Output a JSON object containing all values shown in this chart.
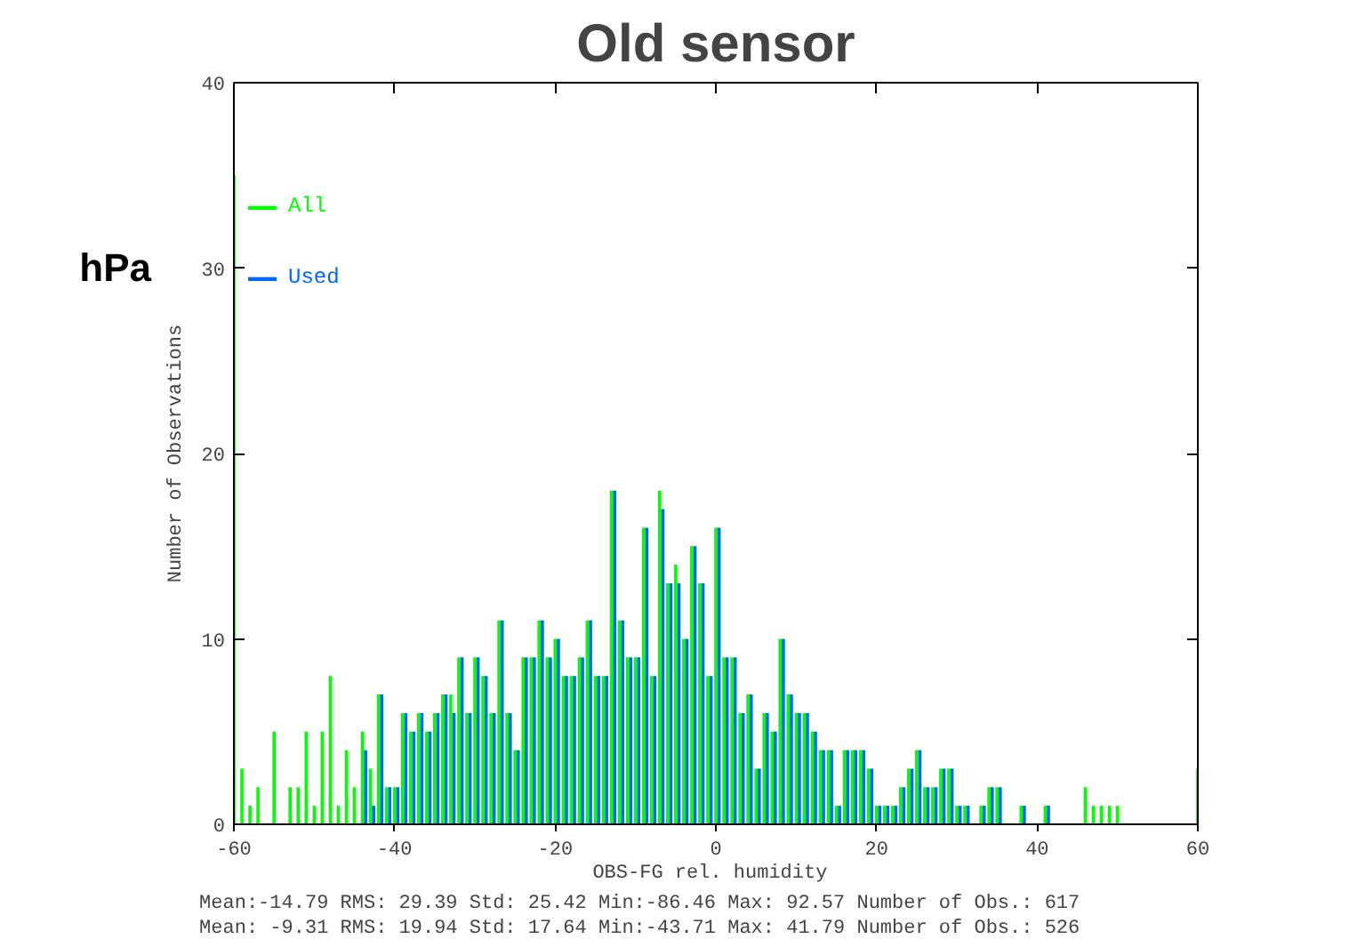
{
  "chart_data": {
    "type": "bar",
    "title": "Old sensor",
    "xlabel": "OBS-FG  rel. humidity",
    "ylabel": "Number of Observations",
    "annotations": [
      "hPa",
      "Mean:-14.79   RMS: 29.39   Std: 25.42   Min:-86.46   Max: 92.57      Number of Obs.: 617",
      "Mean: -9.31   RMS: 19.94   Std: 17.64   Min:-43.71   Max: 41.79      Number of Obs.: 526"
    ],
    "x": [
      -60,
      -59,
      -58,
      -57,
      -56,
      -55,
      -54,
      -53,
      -52,
      -51,
      -50,
      -49,
      -48,
      -47,
      -46,
      -45,
      -44,
      -43,
      -42,
      -41,
      -40,
      -39,
      -38,
      -37,
      -36,
      -35,
      -34,
      -33,
      -32,
      -31,
      -30,
      -29,
      -28,
      -27,
      -26,
      -25,
      -24,
      -23,
      -22,
      -21,
      -20,
      -19,
      -18,
      -17,
      -16,
      -15,
      -14,
      -13,
      -12,
      -11,
      -10,
      -9,
      -8,
      -7,
      -6,
      -5,
      -4,
      -3,
      -2,
      -1,
      0,
      1,
      2,
      3,
      4,
      5,
      6,
      7,
      8,
      9,
      10,
      11,
      12,
      13,
      14,
      15,
      16,
      17,
      18,
      19,
      20,
      21,
      22,
      23,
      24,
      25,
      26,
      27,
      28,
      29,
      30,
      31,
      32,
      33,
      34,
      35,
      36,
      37,
      38,
      39,
      40,
      41,
      42,
      43,
      44,
      45,
      46,
      47,
      48,
      49,
      50,
      51,
      52,
      53,
      54,
      55,
      56,
      57,
      58,
      59,
      60
    ],
    "series": [
      {
        "name": "All",
        "color": "#00ff00",
        "values": [
          35,
          3,
          1,
          2,
          0,
          5,
          0,
          2,
          2,
          5,
          1,
          5,
          8,
          1,
          4,
          2,
          5,
          3,
          7,
          2,
          2,
          6,
          5,
          6,
          5,
          6,
          7,
          7,
          9,
          6,
          9,
          8,
          6,
          11,
          6,
          4,
          9,
          9,
          11,
          9,
          10,
          8,
          8,
          9,
          11,
          8,
          8,
          18,
          11,
          9,
          9,
          16,
          8,
          18,
          13,
          14,
          10,
          15,
          13,
          8,
          16,
          9,
          9,
          6,
          7,
          3,
          6,
          5,
          10,
          7,
          6,
          6,
          5,
          4,
          4,
          1,
          4,
          4,
          4,
          3,
          1,
          1,
          1,
          2,
          3,
          4,
          2,
          2,
          3,
          3,
          1,
          1,
          0,
          1,
          2,
          2,
          0,
          0,
          1,
          0,
          0,
          1,
          0,
          0,
          0,
          0,
          2,
          1,
          1,
          1,
          1,
          0,
          0,
          0,
          0,
          0,
          0,
          0,
          0,
          0,
          3
        ]
      },
      {
        "name": "Used",
        "color": "#0066ff",
        "values": [
          0,
          0,
          0,
          0,
          0,
          0,
          0,
          0,
          0,
          0,
          0,
          0,
          0,
          0,
          0,
          0,
          4,
          1,
          7,
          2,
          2,
          6,
          5,
          6,
          5,
          6,
          7,
          6,
          9,
          6,
          9,
          8,
          6,
          11,
          6,
          4,
          9,
          9,
          11,
          9,
          10,
          8,
          8,
          9,
          11,
          8,
          8,
          18,
          11,
          9,
          9,
          16,
          8,
          17,
          13,
          13,
          10,
          15,
          13,
          8,
          16,
          9,
          9,
          6,
          7,
          3,
          6,
          5,
          10,
          7,
          6,
          6,
          5,
          4,
          4,
          1,
          4,
          4,
          4,
          3,
          1,
          1,
          1,
          2,
          3,
          4,
          2,
          2,
          3,
          3,
          1,
          1,
          0,
          1,
          2,
          2,
          0,
          0,
          1,
          0,
          0,
          1,
          0,
          0,
          0,
          0,
          0,
          0,
          0,
          0,
          0,
          0,
          0,
          0,
          0,
          0,
          0,
          0,
          0,
          0,
          0
        ]
      }
    ],
    "xlim": [
      -60,
      60
    ],
    "xticks": [
      -60,
      -40,
      -20,
      0,
      20,
      40,
      60
    ],
    "ylim": [
      0,
      40
    ],
    "yticks": [
      0,
      10,
      20,
      30,
      40
    ],
    "legend": "top left"
  }
}
